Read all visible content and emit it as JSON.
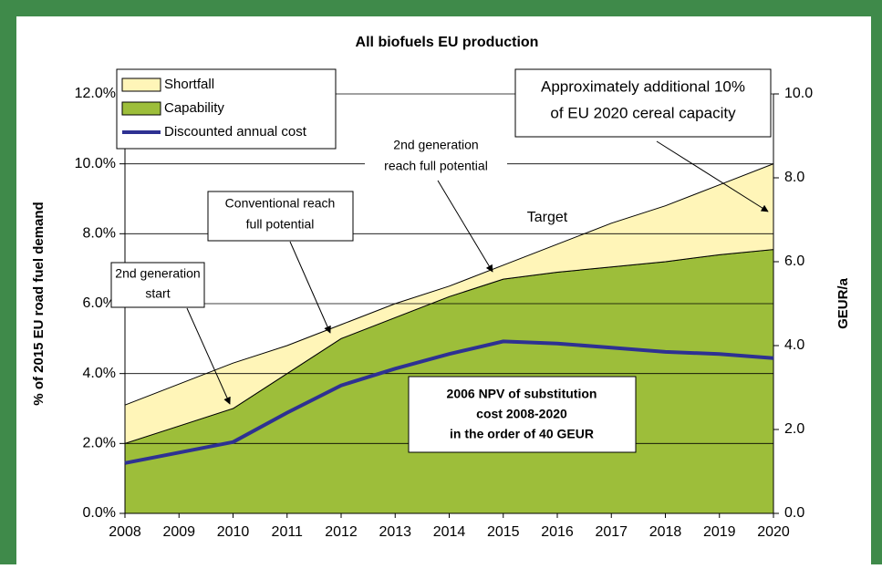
{
  "chart_data": {
    "type": "stacked-area-line",
    "title": "All biofuels EU production",
    "y_label": "% of 2015 EU road fuel demand",
    "y2_label": "GEUR/a",
    "categories": [
      "2008",
      "2009",
      "2010",
      "2011",
      "2012",
      "2013",
      "2014",
      "2015",
      "2016",
      "2017",
      "2018",
      "2019",
      "2020"
    ],
    "series": [
      {
        "name": "Capability",
        "color": "#9dbe3a",
        "values": [
          2.0,
          2.5,
          3.0,
          4.0,
          5.0,
          5.6,
          6.2,
          6.7,
          6.9,
          7.05,
          7.2,
          7.4,
          7.55
        ]
      },
      {
        "name": "Shortfall",
        "color": "#fff5b8",
        "values": [
          1.1,
          1.2,
          1.3,
          0.8,
          0.4,
          0.4,
          0.3,
          0.4,
          0.8,
          1.25,
          1.6,
          2.0,
          2.45
        ]
      },
      {
        "name": "Discounted annual cost",
        "color": "#2e3192",
        "axis": "y2",
        "values": [
          1.2,
          1.45,
          1.7,
          2.4,
          3.05,
          3.45,
          3.8,
          4.1,
          4.05,
          3.95,
          3.85,
          3.8,
          3.7
        ]
      }
    ],
    "ylim": [
      0,
      12
    ],
    "yticks": [
      {
        "value": 0,
        "label": "0.0%"
      },
      {
        "value": 2,
        "label": "2.0%"
      },
      {
        "value": 4,
        "label": "4.0%"
      },
      {
        "value": 6,
        "label": "6.0%"
      },
      {
        "value": 8,
        "label": "8.0%"
      },
      {
        "value": 10,
        "label": "10.0%"
      },
      {
        "value": 12,
        "label": "12.0%"
      }
    ],
    "y2lim": [
      0,
      10
    ],
    "y2ticks": [
      {
        "value": 0,
        "label": "0.0"
      },
      {
        "value": 2,
        "label": "2.0"
      },
      {
        "value": 4,
        "label": "4.0"
      },
      {
        "value": 6,
        "label": "6.0"
      },
      {
        "value": 8,
        "label": "8.0"
      },
      {
        "value": 10,
        "label": "10.0"
      }
    ],
    "grid": true,
    "annotations": {
      "gen2_start": [
        "2nd generation",
        "start"
      ],
      "conventional": [
        "Conventional reach",
        "full potential"
      ],
      "gen2_full": [
        "2nd generation",
        "reach full potential"
      ],
      "cereal": [
        "Approximately additional 10%",
        "of EU 2020 cereal capacity"
      ],
      "target": "Target",
      "npv": [
        "2006 NPV of substitution",
        "cost 2008-2020",
        "in the order of 40 GEUR"
      ]
    }
  }
}
